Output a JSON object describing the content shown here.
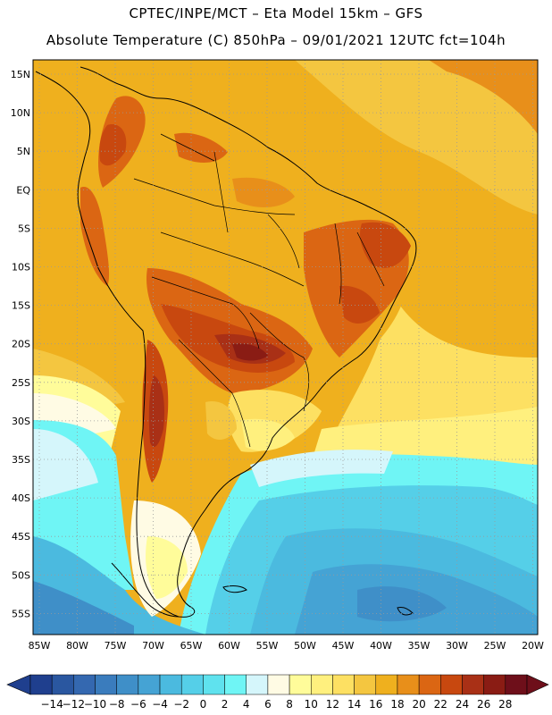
{
  "header": {
    "line1": "CPTEC/INPE/MCT –  Eta Model 15km – GFS",
    "line2": "Absolute Temperature (C) 850hPa – 09/01/2021 12UTC fct=104h"
  },
  "map": {
    "lat_labels": [
      "15N",
      "10N",
      "5N",
      "EQ",
      "5S",
      "10S",
      "15S",
      "20S",
      "25S",
      "30S",
      "35S",
      "40S",
      "45S",
      "50S",
      "55S"
    ],
    "lon_labels": [
      "85W",
      "80W",
      "75W",
      "70W",
      "65W",
      "60W",
      "55W",
      "50W",
      "45W",
      "40W",
      "35W",
      "30W",
      "25W",
      "20W"
    ],
    "grid": "dotted"
  },
  "colorbar": {
    "ticks": [
      "-14",
      "-12",
      "-10",
      "-8",
      "-6",
      "-4",
      "-2",
      "0",
      "2",
      "4",
      "6",
      "8",
      "10",
      "12",
      "14",
      "16",
      "18",
      "20",
      "22",
      "24",
      "26",
      "28"
    ],
    "colors": [
      "#1f3f8e",
      "#2a57a0",
      "#3468b0",
      "#3a7cbd",
      "#3f8fc8",
      "#45a3d4",
      "#4bbadf",
      "#55cfe8",
      "#5fe2ee",
      "#6ff5f5",
      "#d5f6fb",
      "#fffbe4",
      "#fffc9a",
      "#fff07e",
      "#fde062",
      "#f4c640",
      "#efb01e",
      "#e88f1a",
      "#db6613",
      "#c8480f",
      "#a93016",
      "#8a1c14",
      "#6e0f1a"
    ]
  }
}
